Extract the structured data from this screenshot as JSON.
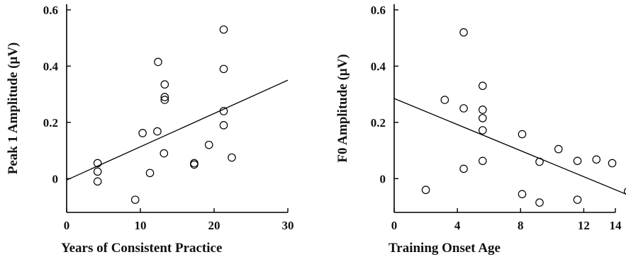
{
  "chart_data": [
    {
      "type": "scatter",
      "xlabel": "Years of Consistent Practice",
      "ylabel": "Peak 1 Amplitude (μV)",
      "xlim": [
        0,
        30
      ],
      "ylim": [
        -0.12,
        0.62
      ],
      "x_ticks": [
        0,
        10,
        20,
        30
      ],
      "y_ticks": [
        0,
        0.2,
        0.4,
        0.6
      ],
      "x_tick_labels": [
        "0",
        "10",
        "20",
        "30"
      ],
      "y_tick_labels": [
        "0",
        "0.2",
        "0.4",
        "0.6"
      ],
      "grid": false,
      "x": [
        4.2,
        4.2,
        4.2,
        9.3,
        10.3,
        11.3,
        12.3,
        12.4,
        13.2,
        13.3,
        13.3,
        13.3,
        17.3,
        17.3,
        19.3,
        21.3,
        21.3,
        21.3,
        21.3,
        22.4
      ],
      "y": [
        0.055,
        0.025,
        -0.01,
        -0.075,
        0.162,
        0.02,
        0.168,
        0.415,
        0.09,
        0.28,
        0.29,
        0.335,
        0.05,
        0.055,
        0.12,
        0.53,
        0.39,
        0.24,
        0.19,
        0.075
      ],
      "trendline": {
        "x": [
          0,
          30
        ],
        "y": [
          -0.005,
          0.35
        ]
      }
    },
    {
      "type": "scatter",
      "xlabel": "Training Onset Age",
      "ylabel": "F0 Amplitude (μV)",
      "xlim": [
        0,
        14
      ],
      "ylim": [
        -0.12,
        0.62
      ],
      "x_ticks": [
        0,
        4,
        8,
        12,
        14
      ],
      "y_ticks": [
        0,
        0.2,
        0.4,
        0.6
      ],
      "x_tick_labels": [
        "0",
        "4",
        "8",
        "12",
        "14"
      ],
      "y_tick_labels": [
        "0",
        "0.2",
        "0.4",
        "0.6"
      ],
      "grid": false,
      "x": [
        2,
        3.2,
        4.4,
        4.4,
        4.4,
        5.6,
        5.6,
        5.6,
        5.6,
        5.6,
        8.1,
        8.1,
        9.2,
        9.2,
        10.4,
        11.6,
        11.6,
        12.8,
        13.8,
        14.8
      ],
      "y": [
        -0.04,
        0.28,
        0.52,
        0.25,
        0.035,
        0.33,
        0.245,
        0.215,
        0.172,
        0.063,
        0.158,
        -0.055,
        0.06,
        -0.085,
        0.105,
        0.063,
        -0.075,
        0.068,
        0.055,
        -0.045
      ],
      "trendline": {
        "x": [
          0,
          14.8
        ],
        "y": [
          0.285,
          -0.058
        ]
      }
    }
  ]
}
